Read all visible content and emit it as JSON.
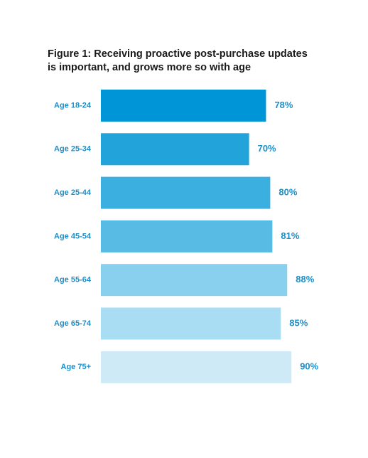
{
  "title_line1": "Figure 1: Receiving proactive post-purchase updates",
  "title_line2": "is important, and grows more so with age",
  "chart_data": {
    "type": "bar",
    "orientation": "horizontal",
    "title": "Figure 1: Receiving proactive post-purchase updates is important, and grows more so with age",
    "categories": [
      "Age 18-24",
      "Age 25-34",
      "Age 25-44",
      "Age 45-54",
      "Age 55-64",
      "Age 65-74",
      "Age 75+"
    ],
    "values": [
      78,
      70,
      80,
      81,
      88,
      85,
      90
    ],
    "value_labels": [
      "78%",
      "70%",
      "80%",
      "81%",
      "88%",
      "85%",
      "90%"
    ],
    "bar_colors": [
      "#0095d6",
      "#22a4da",
      "#3aafe0",
      "#57bbe4",
      "#88d0ee",
      "#a9ddf3",
      "#cfeaf7"
    ],
    "label_color": "#1b8fc9",
    "grid": false,
    "legend": "none"
  }
}
